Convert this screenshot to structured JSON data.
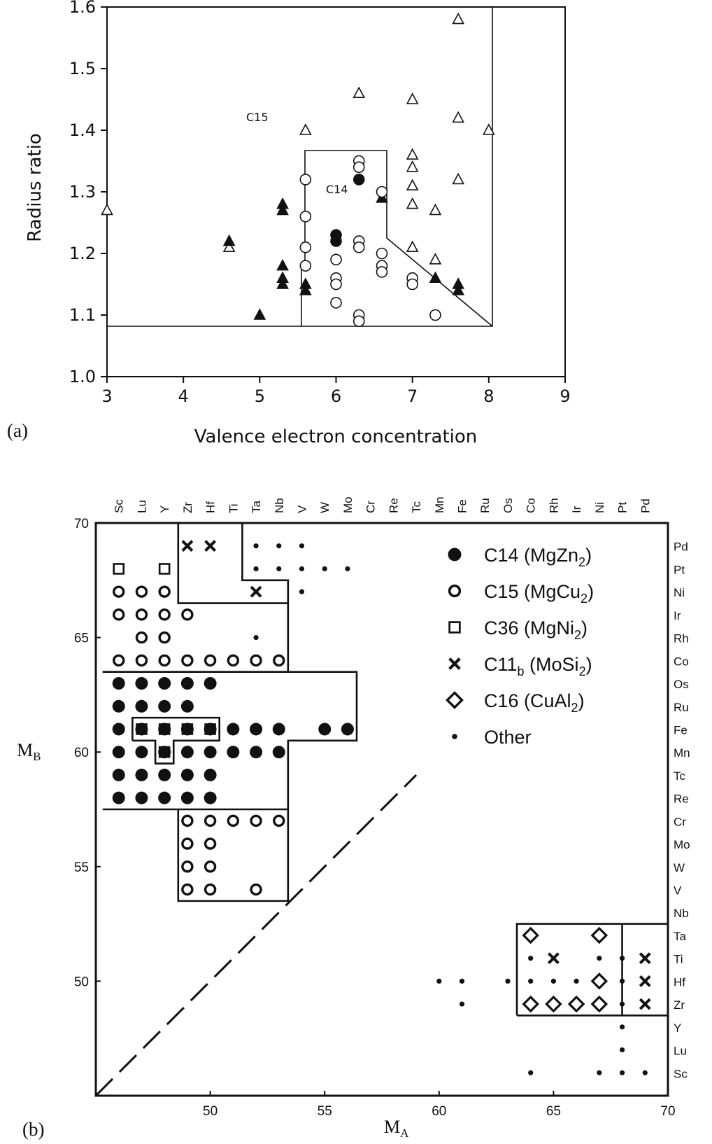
{
  "panel_labels": {
    "a": "(a)",
    "b": "(b)"
  },
  "chart_data": [
    {
      "type": "scatter",
      "panel": "(a)",
      "title": "",
      "xlabel": "Valence electron concentration",
      "ylabel": "Radius ratio",
      "xlim": [
        3,
        9
      ],
      "ylim": [
        1.0,
        1.6
      ],
      "xticks": [
        "3",
        "4",
        "5",
        "6",
        "7",
        "8",
        "9"
      ],
      "yticks": [
        "1.0",
        "1.1",
        "1.2",
        "1.3",
        "1.4",
        "1.5",
        "1.6"
      ],
      "region_labels": [
        "C15",
        "C14"
      ],
      "series": [
        {
          "marker": "triangle-open",
          "points": [
            [
              3.0,
              1.27
            ],
            [
              4.6,
              1.21
            ],
            [
              5.6,
              1.4
            ],
            [
              6.3,
              1.46
            ],
            [
              7.0,
              1.45
            ],
            [
              7.0,
              1.36
            ],
            [
              7.0,
              1.34
            ],
            [
              7.0,
              1.31
            ],
            [
              7.0,
              1.28
            ],
            [
              7.0,
              1.21
            ],
            [
              7.3,
              1.27
            ],
            [
              7.3,
              1.19
            ],
            [
              7.6,
              1.58
            ],
            [
              7.6,
              1.42
            ],
            [
              7.6,
              1.32
            ],
            [
              8.0,
              1.4
            ]
          ]
        },
        {
          "marker": "triangle-filled",
          "points": [
            [
              4.6,
              1.22
            ],
            [
              5.0,
              1.1
            ],
            [
              5.3,
              1.28
            ],
            [
              5.3,
              1.27
            ],
            [
              5.3,
              1.18
            ],
            [
              5.3,
              1.16
            ],
            [
              5.3,
              1.15
            ],
            [
              5.6,
              1.15
            ],
            [
              5.6,
              1.14
            ],
            [
              6.6,
              1.29
            ],
            [
              7.3,
              1.16
            ],
            [
              7.6,
              1.15
            ],
            [
              7.6,
              1.14
            ]
          ]
        },
        {
          "marker": "circle-open",
          "points": [
            [
              5.6,
              1.32
            ],
            [
              5.6,
              1.26
            ],
            [
              5.6,
              1.21
            ],
            [
              5.6,
              1.18
            ],
            [
              6.0,
              1.19
            ],
            [
              6.0,
              1.16
            ],
            [
              6.0,
              1.15
            ],
            [
              6.0,
              1.12
            ],
            [
              6.3,
              1.35
            ],
            [
              6.3,
              1.34
            ],
            [
              6.3,
              1.22
            ],
            [
              6.3,
              1.21
            ],
            [
              6.3,
              1.1
            ],
            [
              6.3,
              1.09
            ],
            [
              6.6,
              1.3
            ],
            [
              6.6,
              1.2
            ],
            [
              6.6,
              1.18
            ],
            [
              6.6,
              1.17
            ],
            [
              7.0,
              1.16
            ],
            [
              7.0,
              1.15
            ],
            [
              7.3,
              1.1
            ]
          ]
        },
        {
          "marker": "circle-filled",
          "points": [
            [
              6.0,
              1.23
            ],
            [
              6.0,
              1.22
            ],
            [
              6.3,
              1.32
            ]
          ]
        }
      ]
    },
    {
      "type": "scatter",
      "panel": "(b)",
      "title": "",
      "xlabel": "M",
      "xlabel_sub": "A",
      "ylabel": "M",
      "ylabel_sub": "B",
      "xlim": [
        45,
        70
      ],
      "ylim": [
        45,
        70
      ],
      "xticks": [
        "50",
        "55",
        "60",
        "65",
        "70"
      ],
      "yticks": [
        "50",
        "55",
        "60",
        "65",
        "70"
      ],
      "top_elements": [
        "Sc",
        "Lu",
        "Y",
        "Zr",
        "Hf",
        "Ti",
        "Ta",
        "Nb",
        "V",
        "W",
        "Mo",
        "Cr",
        "Re",
        "Tc",
        "Mn",
        "Fe",
        "Ru",
        "Os",
        "Co",
        "Rh",
        "Ir",
        "Ni",
        "Pt",
        "Pd"
      ],
      "right_elements": [
        "Pd",
        "Pt",
        "Ni",
        "Ir",
        "Rh",
        "Co",
        "Os",
        "Ru",
        "Fe",
        "Mn",
        "Tc",
        "Re",
        "Cr",
        "Mo",
        "W",
        "V",
        "Nb",
        "Ta",
        "Ti",
        "Hf",
        "Zr",
        "Y",
        "Lu",
        "Sc"
      ],
      "legend": [
        {
          "marker": "filled-circle",
          "label": "C14 (MgZn",
          "sub": "2",
          "end": ")"
        },
        {
          "marker": "ring",
          "label": "C15 (MgCu",
          "sub": "2",
          "end": ")"
        },
        {
          "marker": "square-open",
          "label": "C36 (MgNi",
          "sub": "2",
          "end": ")"
        },
        {
          "marker": "cross",
          "label": "C11",
          "sub": "b",
          "end": " (MoSi",
          "sub2": "2",
          "end2": ")"
        },
        {
          "marker": "diamond-open",
          "label": "C16 (CuAl",
          "sub": "2",
          "end": ")"
        },
        {
          "marker": "small-dot",
          "label": "Other"
        }
      ],
      "series": [
        {
          "name": "C14 (MgZn2)",
          "marker": "filled-circle",
          "points": [
            [
              46,
              63
            ],
            [
              47,
              63
            ],
            [
              48,
              63
            ],
            [
              49,
              63
            ],
            [
              50,
              63
            ],
            [
              46,
              62
            ],
            [
              47,
              62
            ],
            [
              48,
              62
            ],
            [
              49,
              62
            ],
            [
              46,
              61
            ],
            [
              47,
              61
            ],
            [
              48,
              61
            ],
            [
              49,
              61
            ],
            [
              50,
              61
            ],
            [
              51,
              61
            ],
            [
              52,
              61
            ],
            [
              53,
              61
            ],
            [
              55,
              61
            ],
            [
              56,
              61
            ],
            [
              46,
              60
            ],
            [
              47,
              60
            ],
            [
              48,
              60
            ],
            [
              49,
              60
            ],
            [
              50,
              60
            ],
            [
              51,
              60
            ],
            [
              52,
              60
            ],
            [
              53,
              60
            ],
            [
              46,
              59
            ],
            [
              47,
              59
            ],
            [
              48,
              59
            ],
            [
              49,
              59
            ],
            [
              50,
              59
            ],
            [
              46,
              58
            ],
            [
              47,
              58
            ],
            [
              48,
              58
            ],
            [
              49,
              58
            ],
            [
              50,
              58
            ]
          ]
        },
        {
          "name": "C15 (MgCu2)",
          "marker": "ring",
          "points": [
            [
              46,
              67
            ],
            [
              47,
              67
            ],
            [
              48,
              67
            ],
            [
              46,
              66
            ],
            [
              47,
              66
            ],
            [
              48,
              66
            ],
            [
              49,
              66
            ],
            [
              47,
              65
            ],
            [
              48,
              65
            ],
            [
              46,
              64
            ],
            [
              47,
              64
            ],
            [
              48,
              64
            ],
            [
              49,
              64
            ],
            [
              50,
              64
            ],
            [
              51,
              64
            ],
            [
              52,
              64
            ],
            [
              53,
              64
            ],
            [
              49,
              57
            ],
            [
              50,
              57
            ],
            [
              51,
              57
            ],
            [
              52,
              57
            ],
            [
              53,
              57
            ],
            [
              49,
              56
            ],
            [
              50,
              56
            ],
            [
              49,
              55
            ],
            [
              50,
              55
            ],
            [
              49,
              54
            ],
            [
              50,
              54
            ],
            [
              52,
              54
            ]
          ]
        },
        {
          "name": "C36 (MgNi2)",
          "marker": "square-open",
          "points": [
            [
              46,
              68
            ],
            [
              48,
              68
            ],
            [
              47,
              61
            ],
            [
              48,
              61
            ],
            [
              49,
              61
            ],
            [
              50,
              61
            ],
            [
              48,
              60
            ]
          ]
        },
        {
          "name": "C11b (MoSi2)",
          "marker": "cross",
          "points": [
            [
              49,
              69
            ],
            [
              50,
              69
            ],
            [
              52,
              67
            ],
            [
              65,
              51
            ],
            [
              69,
              51
            ],
            [
              69,
              50
            ],
            [
              69,
              49
            ]
          ]
        },
        {
          "name": "C16 (CuAl2)",
          "marker": "diamond-open",
          "points": [
            [
              64,
              52
            ],
            [
              67,
              52
            ],
            [
              67,
              50
            ],
            [
              64,
              49
            ],
            [
              65,
              49
            ],
            [
              66,
              49
            ],
            [
              67,
              49
            ]
          ]
        },
        {
          "name": "Other",
          "marker": "small-dot",
          "points": [
            [
              52,
              69
            ],
            [
              53,
              69
            ],
            [
              54,
              69
            ],
            [
              52,
              68
            ],
            [
              53,
              68
            ],
            [
              54,
              68
            ],
            [
              55,
              68
            ],
            [
              56,
              68
            ],
            [
              54,
              67
            ],
            [
              52,
              65
            ],
            [
              60,
              50
            ],
            [
              61,
              50
            ],
            [
              63,
              50
            ],
            [
              61,
              49
            ],
            [
              64,
              51
            ],
            [
              67,
              51
            ],
            [
              64,
              50
            ],
            [
              65,
              50
            ],
            [
              66,
              50
            ],
            [
              68,
              50
            ],
            [
              68,
              51
            ],
            [
              68,
              49
            ],
            [
              68,
              48
            ],
            [
              68,
              47
            ],
            [
              64,
              46
            ],
            [
              67,
              46
            ],
            [
              68,
              46
            ],
            [
              69,
              46
            ]
          ]
        }
      ]
    }
  ]
}
